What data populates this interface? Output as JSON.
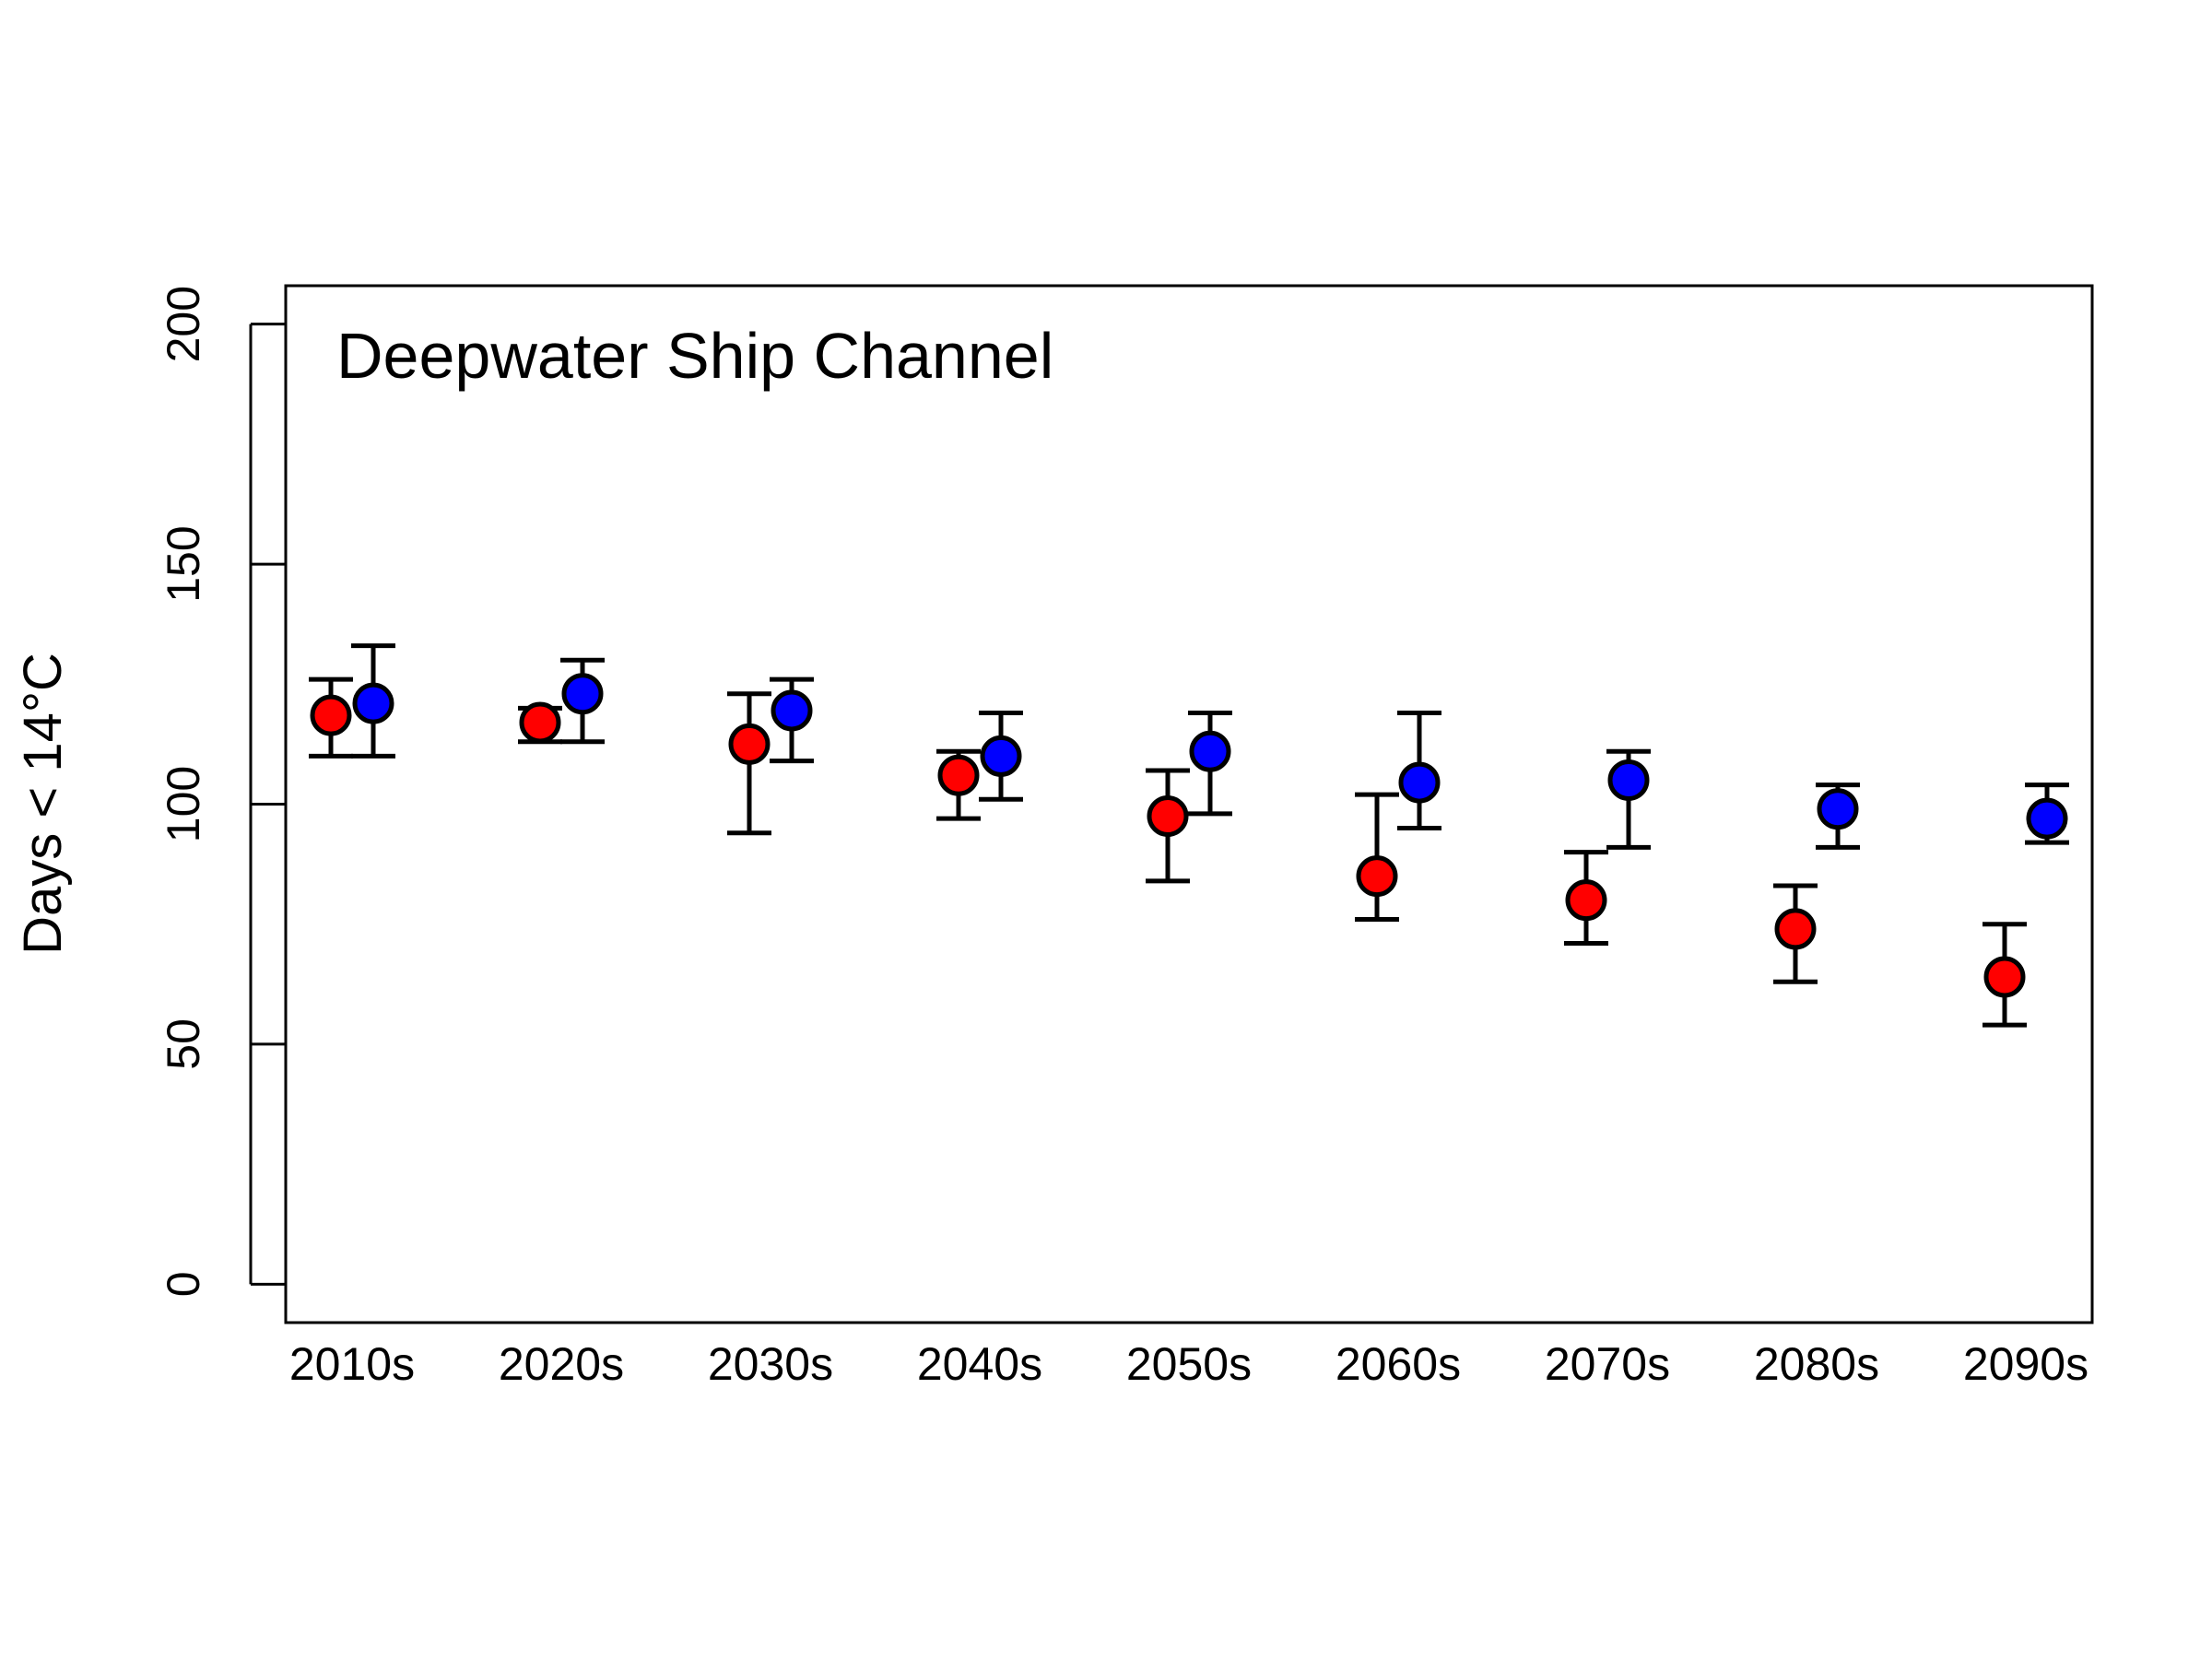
{
  "chart_data": {
    "type": "scatter",
    "annotation": "Deepwater Ship Channel",
    "xlabel": "",
    "ylabel": "Days < 14°C",
    "categories": [
      "2010s",
      "2020s",
      "2030s",
      "2040s",
      "2050s",
      "2060s",
      "2070s",
      "2080s",
      "2090s"
    ],
    "yticks": [
      0,
      50,
      100,
      150,
      200
    ],
    "ylim": [
      -8,
      208
    ],
    "grid": false,
    "legend": "none",
    "series": [
      {
        "color": "#ff0000",
        "values": [
          118.5,
          117,
          112.5,
          106,
          97.5,
          85,
          80,
          74,
          64
        ],
        "lower": [
          110,
          113,
          94,
          97,
          84,
          76,
          71,
          63,
          54
        ],
        "upper": [
          126,
          120,
          123,
          111,
          107,
          102,
          90,
          83,
          75
        ]
      },
      {
        "color": "#0000ff",
        "values": [
          121,
          123,
          119.5,
          110,
          111,
          104.5,
          105,
          99,
          97
        ],
        "lower": [
          110,
          113,
          109,
          101,
          98,
          95,
          91,
          91,
          92
        ],
        "upper": [
          133,
          130,
          126,
          119,
          119,
          119,
          111,
          104,
          104
        ]
      }
    ]
  }
}
